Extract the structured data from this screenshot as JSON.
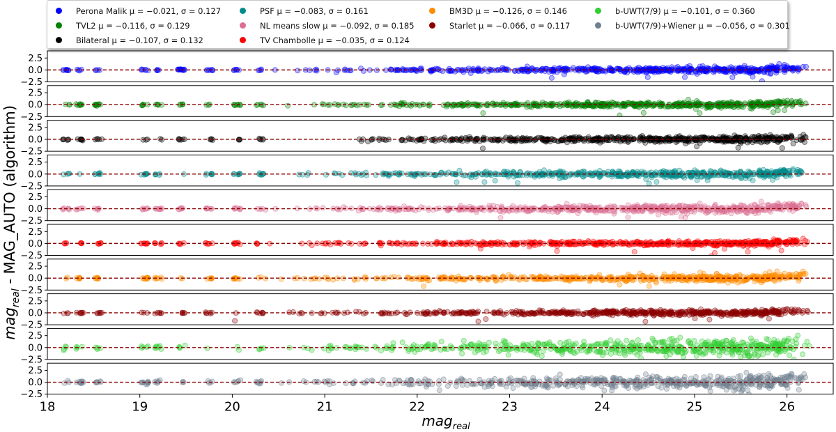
{
  "chart_data": {
    "type": "scatter",
    "xlabel": "mag_real",
    "ylabel": "mag_real - MAG_AUTO (algorithm)",
    "xlim": [
      18,
      26.5
    ],
    "ylim": [
      -2.5,
      4.0
    ],
    "xticks": [
      "18",
      "19",
      "20",
      "21",
      "22",
      "23",
      "24",
      "25",
      "26"
    ],
    "yticks": [
      "2.5",
      "0.0",
      "-2.5"
    ],
    "reference_line": {
      "y": 0.0,
      "style": "dashed",
      "color": "#8b0000"
    },
    "legend_placement": "top",
    "series": [
      {
        "name": "Perona Malik",
        "stats": "μ = −0.021, σ = 0.127",
        "color": "#0000ff",
        "mean": -0.021,
        "sigma": 0.127
      },
      {
        "name": "TVL2",
        "stats": "μ = −0.116, σ = 0.129",
        "color": "#008000",
        "mean": -0.116,
        "sigma": 0.129
      },
      {
        "name": "Bilateral",
        "stats": "μ = −0.107, σ = 0.132",
        "color": "#000000",
        "mean": -0.107,
        "sigma": 0.132
      },
      {
        "name": "PSF",
        "stats": "μ = −0.083, σ = 0.161",
        "color": "#008b8b",
        "mean": -0.083,
        "sigma": 0.161
      },
      {
        "name": "NL means slow",
        "stats": "μ = −0.092, σ = 0.185",
        "color": "#db7093",
        "mean": -0.092,
        "sigma": 0.185
      },
      {
        "name": "TV Chambolle",
        "stats": "μ = −0.035, σ = 0.124",
        "color": "#ff0000",
        "mean": -0.035,
        "sigma": 0.124
      },
      {
        "name": "BM3D",
        "stats": "μ = −0.126, σ = 0.146",
        "color": "#ff8c00",
        "mean": -0.126,
        "sigma": 0.146
      },
      {
        "name": "Starlet",
        "stats": "μ = −0.066, σ = 0.117",
        "color": "#8b0000",
        "mean": -0.066,
        "sigma": 0.117
      },
      {
        "name": "b-UWT(7/9)",
        "stats": "μ = −0.101, σ = 0.360",
        "color": "#32cd32",
        "mean": -0.101,
        "sigma": 0.36
      },
      {
        "name": "b-UWT(7/9)+Wiener",
        "stats": "μ = −0.056, σ = 0.301",
        "color": "#708090",
        "mean": -0.056,
        "sigma": 0.301
      }
    ]
  }
}
